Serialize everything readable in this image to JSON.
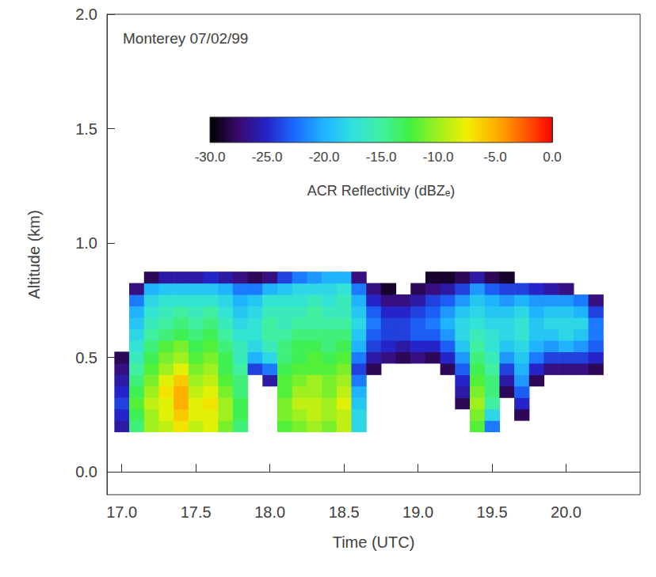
{
  "chart_data": {
    "type": "heatmap",
    "title": "Monterey 07/02/99",
    "x_label": "Time (UTC)",
    "y_label": "Altitude (km)",
    "xlim": [
      16.9,
      20.5
    ],
    "ylim": [
      -0.1,
      2.0
    ],
    "xticks": [
      {
        "value": 17,
        "label": "17.0"
      },
      {
        "value": 17.5,
        "label": "17.5"
      },
      {
        "value": 18,
        "label": "18.0"
      },
      {
        "value": 18.5,
        "label": "18.5"
      },
      {
        "value": 19,
        "label": "19.0"
      },
      {
        "value": 19.5,
        "label": "19.5"
      },
      {
        "value": 20,
        "label": "20.0"
      }
    ],
    "yticks": [
      {
        "value": 0,
        "label": "0.0"
      },
      {
        "value": 0.5,
        "label": "0.5"
      },
      {
        "value": 1,
        "label": "1.0"
      },
      {
        "value": 1.5,
        "label": "1.5"
      },
      {
        "value": 2,
        "label": "2.0"
      }
    ],
    "x": [
      17.0,
      17.1,
      17.2,
      17.3,
      17.4,
      17.5,
      17.6,
      17.7,
      17.8,
      17.9,
      18.0,
      18.1,
      18.2,
      18.3,
      18.4,
      18.5,
      18.6,
      18.7,
      18.8,
      18.9,
      19.0,
      19.1,
      19.2,
      19.3,
      19.4,
      19.5,
      19.6,
      19.7,
      19.8,
      19.9,
      20.0,
      20.1,
      20.2
    ],
    "y": [
      0.2,
      0.25,
      0.3,
      0.35,
      0.4,
      0.45,
      0.5,
      0.55,
      0.6,
      0.65,
      0.7,
      0.75,
      0.8,
      0.85
    ],
    "values": [
      [
        -26,
        -25,
        -24,
        -25,
        -26,
        -27,
        -28,
        null,
        null,
        null,
        null,
        null,
        null,
        null
      ],
      [
        -14,
        -13,
        -12,
        -13,
        -14,
        -15,
        -16,
        -17,
        -18,
        -19,
        -20,
        -22,
        -27,
        null
      ],
      [
        -10,
        -10,
        -9,
        -10,
        -11,
        -12,
        -13,
        -14,
        -15,
        -16,
        -17,
        -18,
        -20,
        -28
      ],
      [
        -9,
        -8,
        -8,
        -7,
        -8,
        -10,
        -11,
        -12,
        -14,
        -15,
        -16,
        -17,
        -19,
        -26
      ],
      [
        -7,
        -6,
        -5,
        -5,
        -6,
        -8,
        -10,
        -11,
        -13,
        -14,
        -15,
        -17,
        -19,
        -26
      ],
      [
        -9,
        -8,
        -8,
        -9,
        -10,
        -11,
        -12,
        -13,
        -14,
        -15,
        -16,
        -17,
        -19,
        -26
      ],
      [
        -8,
        -8,
        -7,
        -8,
        -9,
        -10,
        -11,
        -12,
        -13,
        -14,
        -15,
        -17,
        -19,
        -25
      ],
      [
        -11,
        -10,
        -10,
        -11,
        -12,
        -13,
        -13,
        -14,
        -15,
        -16,
        -17,
        -18,
        -20,
        -26
      ],
      [
        -14,
        -13,
        -13,
        -14,
        -14,
        -15,
        -16,
        -16,
        -17,
        -18,
        -19,
        -20,
        -22,
        -27
      ],
      [
        null,
        null,
        null,
        null,
        null,
        -24,
        -20,
        -18,
        -17,
        -17,
        -18,
        -19,
        -22,
        -28
      ],
      [
        null,
        null,
        null,
        null,
        -26,
        -22,
        -18,
        -16,
        -15,
        -15,
        -16,
        -17,
        -20,
        -27
      ],
      [
        -12,
        -11,
        -11,
        -12,
        -12,
        -13,
        -14,
        -14,
        -15,
        -16,
        -16,
        -17,
        -19,
        -24
      ],
      [
        -11,
        -10,
        -9,
        -10,
        -11,
        -12,
        -13,
        -13,
        -14,
        -15,
        -16,
        -17,
        -18,
        -22
      ],
      [
        -10,
        -9,
        -9,
        -10,
        -10,
        -12,
        -12,
        -13,
        -14,
        -15,
        -15,
        -16,
        -18,
        -21
      ],
      [
        -11,
        -10,
        -10,
        -11,
        -11,
        -12,
        -13,
        -14,
        -14,
        -15,
        -16,
        -17,
        -18,
        -20
      ],
      [
        -9,
        -9,
        -8,
        -9,
        -10,
        -11,
        -12,
        -13,
        -14,
        -15,
        -16,
        -16,
        -17,
        -20
      ],
      [
        -18,
        -18,
        -19,
        -20,
        -22,
        -24,
        -22,
        -20,
        -19,
        -18,
        -19,
        -20,
        -22,
        -27
      ],
      [
        null,
        null,
        null,
        null,
        null,
        -28,
        -26,
        -24,
        -23,
        -22,
        -23,
        -25,
        -27,
        null
      ],
      [
        null,
        null,
        null,
        null,
        null,
        null,
        -27,
        -25,
        -24,
        -24,
        -25,
        -27,
        -29,
        null
      ],
      [
        null,
        null,
        null,
        null,
        null,
        null,
        -28,
        -26,
        -24,
        -24,
        -25,
        -27,
        null,
        null
      ],
      [
        null,
        null,
        null,
        null,
        null,
        null,
        -27,
        -25,
        -23,
        -23,
        -24,
        -26,
        -28,
        null
      ],
      [
        null,
        null,
        null,
        null,
        null,
        null,
        -28,
        -25,
        -23,
        -22,
        -23,
        -24,
        -27,
        -29
      ],
      [
        null,
        null,
        null,
        null,
        null,
        -28,
        -25,
        -23,
        -21,
        -20,
        -21,
        -23,
        -26,
        -29
      ],
      [
        null,
        null,
        -28,
        -26,
        -25,
        -23,
        -21,
        -19,
        -18,
        -18,
        -19,
        -21,
        -24,
        -28
      ],
      [
        -12,
        -11,
        -10,
        -11,
        -12,
        -13,
        -14,
        -15,
        -16,
        -17,
        -18,
        -19,
        -21,
        -26
      ],
      [
        -22,
        -18,
        -15,
        -14,
        -14,
        -15,
        -16,
        -17,
        -17,
        -18,
        -19,
        -20,
        -23,
        -28
      ],
      [
        null,
        null,
        null,
        -28,
        -26,
        -24,
        -21,
        -19,
        -18,
        -18,
        -19,
        -21,
        -24,
        -29
      ],
      [
        null,
        -28,
        -25,
        -23,
        -21,
        -20,
        -19,
        -18,
        -17,
        -17,
        -18,
        -20,
        -24,
        null
      ],
      [
        null,
        null,
        null,
        null,
        -28,
        -25,
        -22,
        -20,
        -19,
        -19,
        -20,
        -21,
        -25,
        null
      ],
      [
        null,
        null,
        null,
        null,
        null,
        -27,
        -24,
        -21,
        -19,
        -18,
        -19,
        -21,
        -26,
        null
      ],
      [
        null,
        null,
        null,
        null,
        null,
        -27,
        -24,
        -20,
        -18,
        -18,
        -19,
        -21,
        -27,
        null
      ],
      [
        null,
        null,
        null,
        null,
        null,
        -27,
        -24,
        -21,
        -19,
        -18,
        -20,
        -22,
        null,
        null
      ],
      [
        null,
        null,
        null,
        null,
        null,
        -28,
        -25,
        -23,
        -22,
        -22,
        -24,
        -27,
        null,
        null
      ]
    ],
    "colorbar": {
      "label": "ACR Reflectivity (dBZₑ)",
      "range": [
        -30,
        0
      ],
      "ticks": [
        {
          "value": -30,
          "label": "-30.0"
        },
        {
          "value": -25,
          "label": "-25.0"
        },
        {
          "value": -20,
          "label": "-20.0"
        },
        {
          "value": -15,
          "label": "-15.0"
        },
        {
          "value": -10,
          "label": "-10.0"
        },
        {
          "value": -5,
          "label": "-5.0"
        },
        {
          "value": 0,
          "label": "0.0"
        }
      ]
    },
    "grid": false
  }
}
